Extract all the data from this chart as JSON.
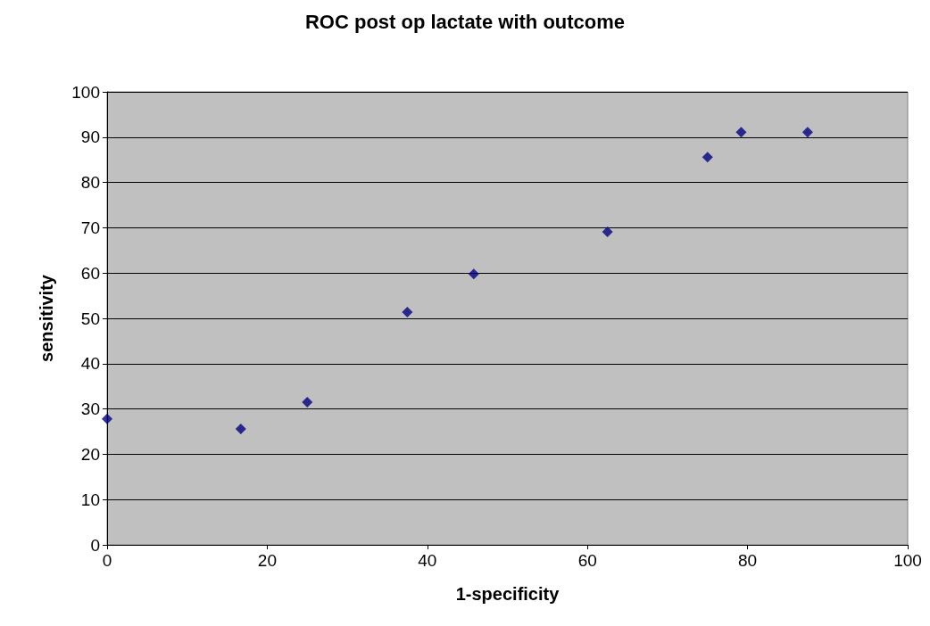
{
  "chart_data": {
    "type": "scatter",
    "title": "ROC post op lactate with outcome",
    "xlabel": "1-specificity",
    "ylabel": "sensitivity",
    "x": [
      0,
      16.7,
      25,
      37.5,
      45.8,
      62.5,
      75,
      79.2,
      87.5
    ],
    "values": [
      27.8,
      25.6,
      31.5,
      51.4,
      59.8,
      69.1,
      85.6,
      91.1,
      91.1
    ],
    "color": "#000080",
    "marker": "diamond",
    "grid": "y",
    "xlim": [
      0,
      100
    ],
    "xticks": [
      0,
      20,
      40,
      60,
      80,
      100
    ],
    "ylim": [
      0,
      100
    ],
    "yticks": [
      0,
      10,
      20,
      30,
      40,
      50,
      60,
      70,
      80,
      90,
      100
    ]
  }
}
